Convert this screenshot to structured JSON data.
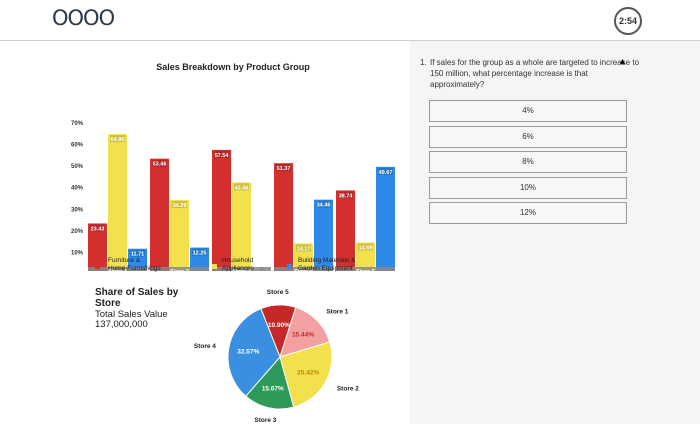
{
  "header": {
    "logo": "OOOO",
    "timer": "2:54"
  },
  "chart_data": [
    {
      "type": "bar",
      "title": "Sales Breakdown by Product Group",
      "categories": [
        "Store 1",
        "Store 2",
        "Store 3",
        "Store 4",
        "Store 5"
      ],
      "y_ticks": [
        "0",
        "10%",
        "20%",
        "30%",
        "40%",
        "50%",
        "60%",
        "70%"
      ],
      "ylim": [
        0,
        70
      ],
      "series": [
        {
          "name": "Furniture & Home Furnishings",
          "color": "#d32f2f",
          "values": [
            23.43,
            53.46,
            57.54,
            51.37,
            38.74
          ]
        },
        {
          "name": "Household Appliances",
          "color": "#f2e14c",
          "values": [
            64.86,
            34.29,
            42.46,
            14.17,
            14.59
          ]
        },
        {
          "name": "Building Materials & Garden Equipment",
          "color": "#2e8ae6",
          "values": [
            11.71,
            12.25,
            0,
            34.46,
            49.67
          ]
        }
      ],
      "labels": [
        [
          "23.43",
          "53.46",
          "57.54",
          "51.37",
          "38.74"
        ],
        [
          "64.86",
          "34.29",
          "42.46",
          "14.17",
          "14.59"
        ],
        [
          "11.71",
          "12.25",
          "0",
          "34.46",
          "49.67"
        ]
      ]
    },
    {
      "type": "pie",
      "title": "Share of Sales by Store",
      "subtitle": "Total Sales Value 137,000,000",
      "slices": [
        {
          "name": "Store 1",
          "value": 15.44,
          "label": "15.44%",
          "color": "#f2a0a0"
        },
        {
          "name": "Store 2",
          "value": 25.42,
          "label": "25.42%",
          "color": "#f2e14c"
        },
        {
          "name": "Store 3",
          "value": 15.67,
          "label": "15.67%",
          "color": "#2e9a5a"
        },
        {
          "name": "Store 4",
          "value": 32.57,
          "label": "32.57%",
          "color": "#3a8fe0"
        },
        {
          "name": "Store 5",
          "value": 10.9,
          "label": "10.90%",
          "color": "#c62828"
        }
      ]
    }
  ],
  "question": {
    "number": "1.",
    "text": "If sales for the group as a whole are targeted to increase to 150 million, what percentage increase is that approximately?",
    "options": [
      "4%",
      "6%",
      "8%",
      "10%",
      "12%"
    ]
  }
}
